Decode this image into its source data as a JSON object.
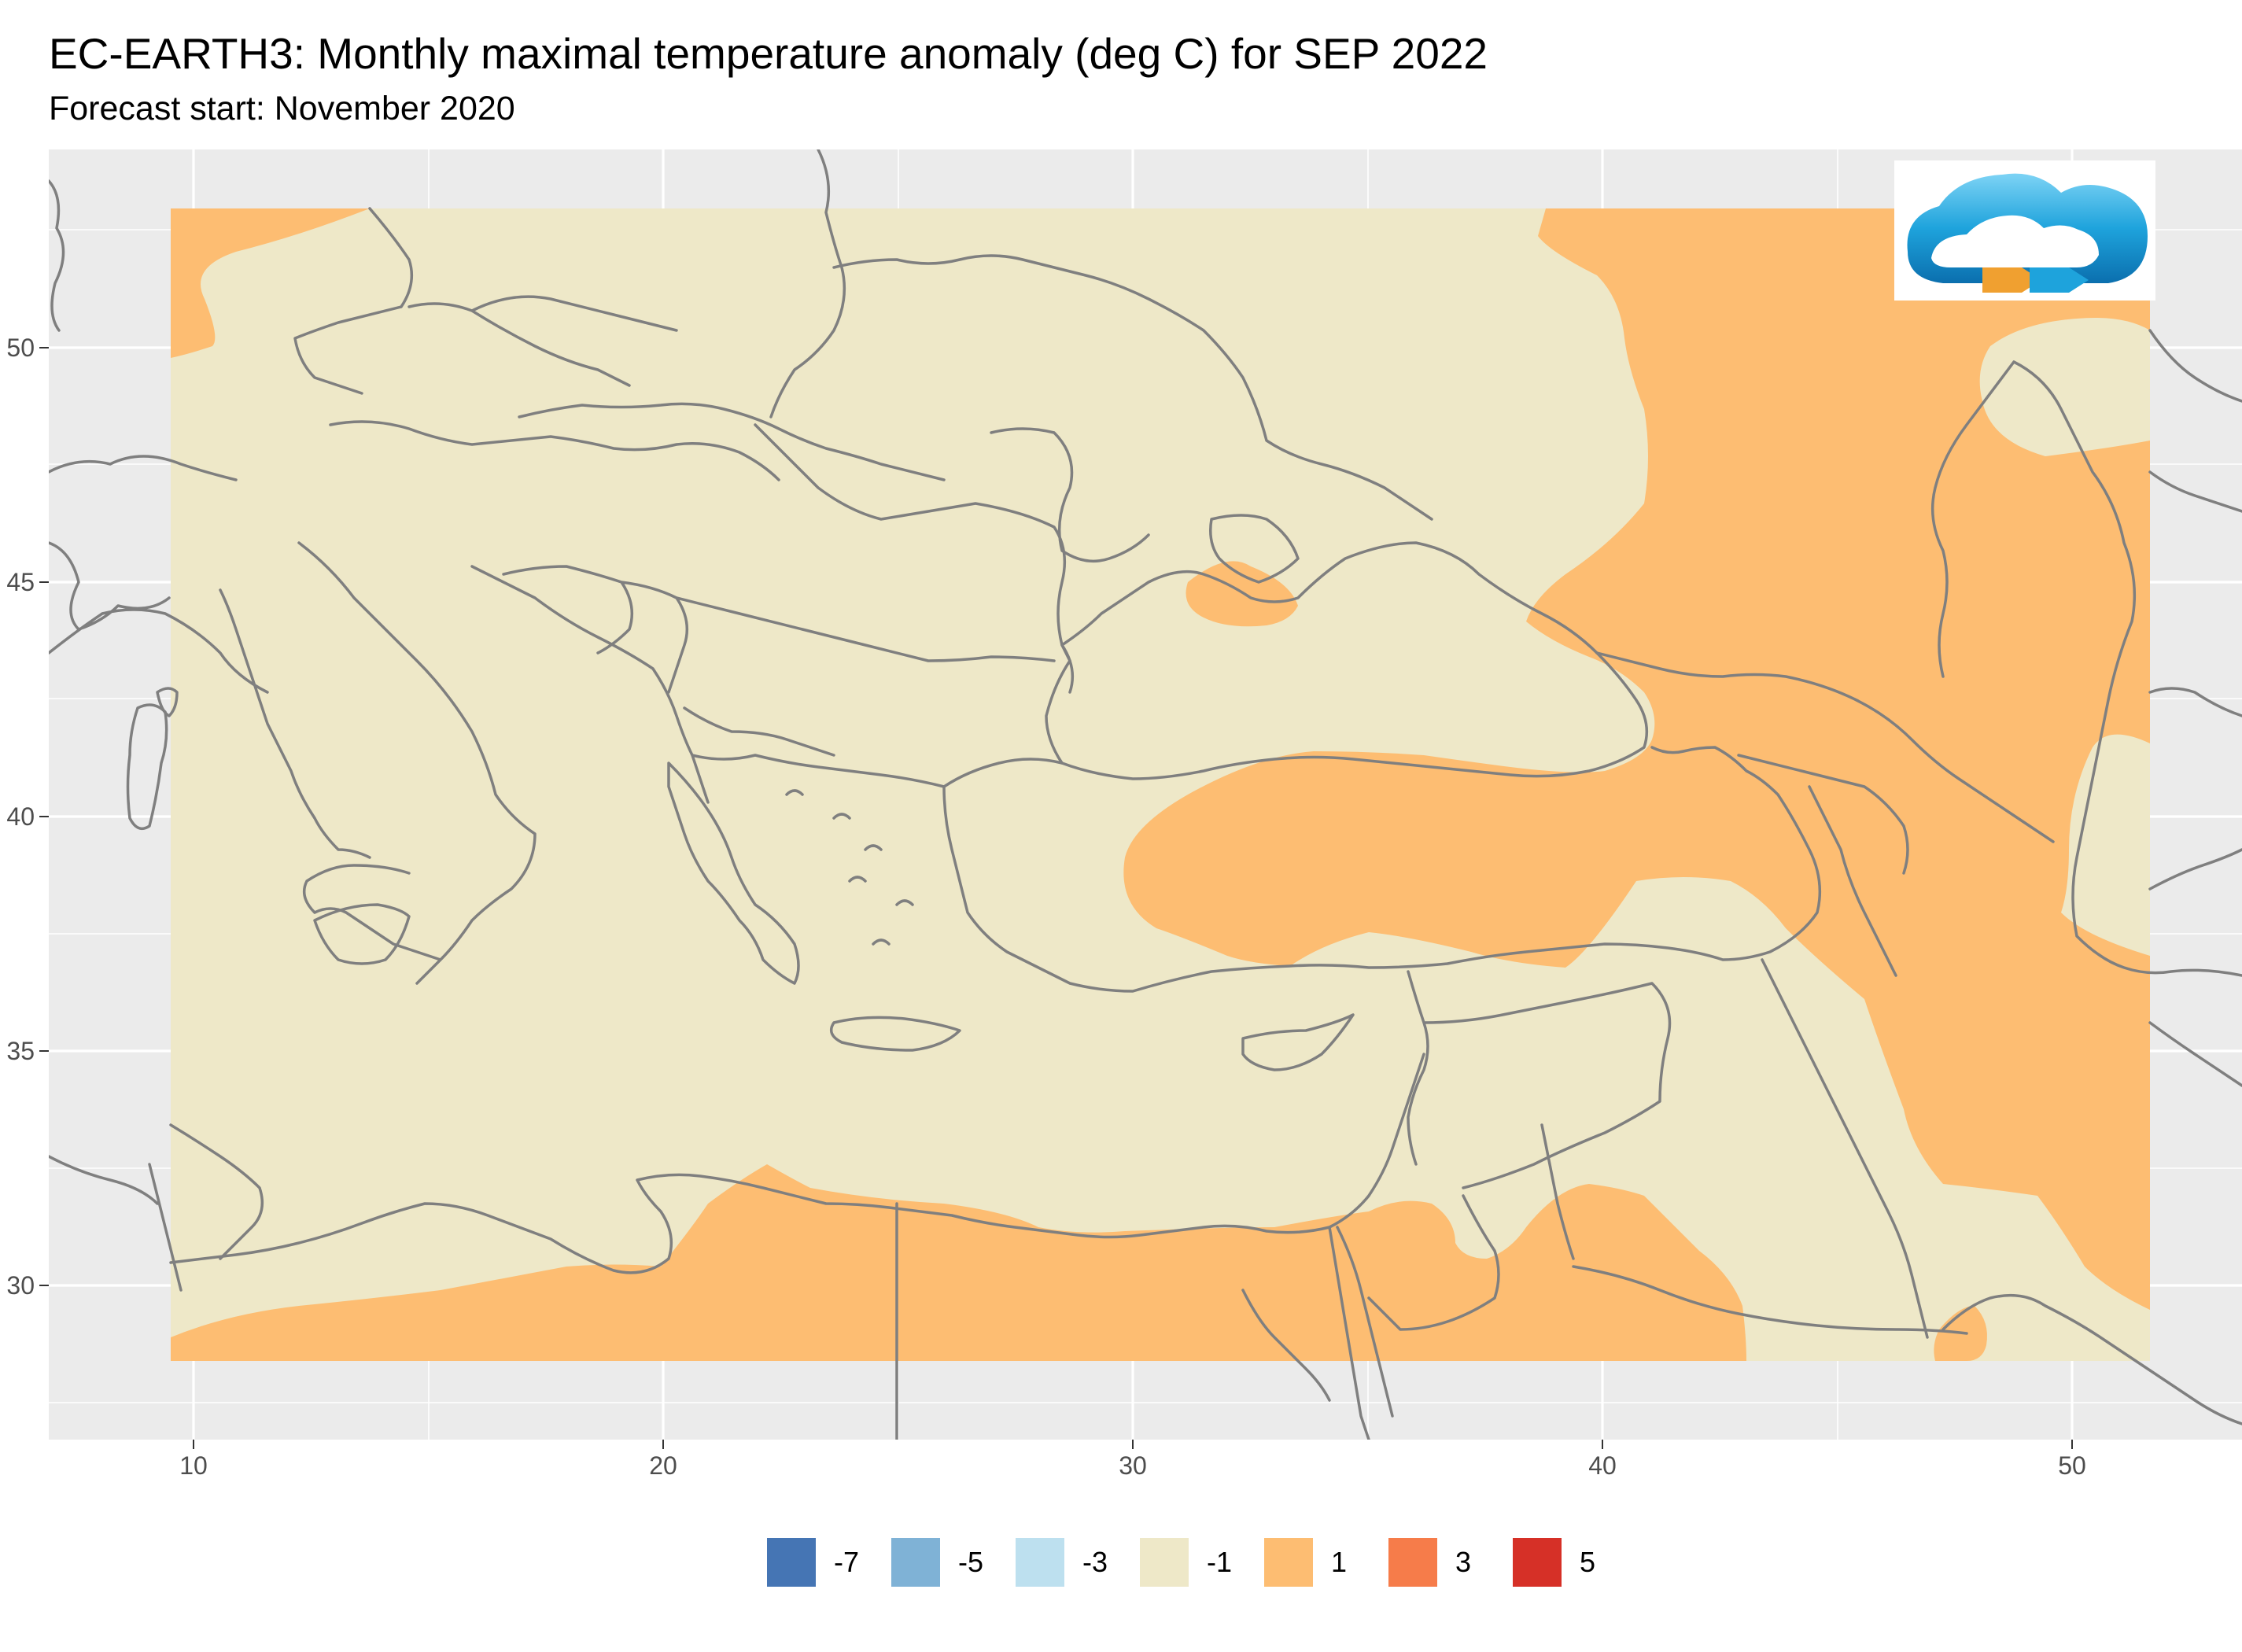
{
  "title": "EC-EARTH3: Monthly maximal temperature anomaly (deg C) for SEP 2022",
  "subtitle": "Forecast start: November 2020",
  "axes": {
    "x_ticks": [
      "10",
      "20",
      "30",
      "40",
      "50"
    ],
    "y_ticks": [
      "50",
      "45",
      "40",
      "35",
      "30"
    ]
  },
  "colors": {
    "panel_background": "#ebebeb",
    "grid": "#ffffff",
    "borders": "#7f7f7f",
    "logo_cloud": "#1ea3dc",
    "logo_arrow": "#f0a030"
  },
  "legend": [
    {
      "label": "-7",
      "color": "#4575b4"
    },
    {
      "label": "-5",
      "color": "#7fb2d6"
    },
    {
      "label": "-3",
      "color": "#bde0ef"
    },
    {
      "label": "-1",
      "color": "#eee8c8"
    },
    {
      "label": "1",
      "color": "#fdbd72"
    },
    {
      "label": "3",
      "color": "#f67c4a"
    },
    {
      "label": "5",
      "color": "#d63027"
    }
  ],
  "logo": {
    "icon": "cloud-logo-icon"
  }
}
